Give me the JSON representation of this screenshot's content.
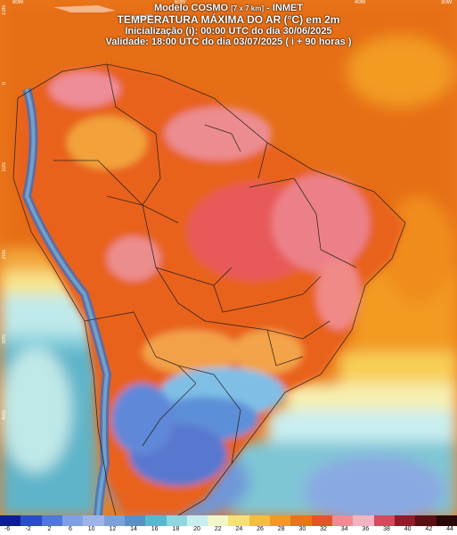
{
  "header": {
    "line1_prefix": "Modelo COSMO",
    "line1_small": "[7 x 7 km]",
    "line1_suffix": "- INMET",
    "line2": "TEMPERATURA MÁXIMA DO AR (°C) em 2m",
    "line3": "Inicialização (i): 00:00 UTC do dia 30/06/2025",
    "line4": "Validade: 18:00 UTC do dia 03/07/2025 ( i + 90 horas )"
  },
  "grid_labels": {
    "longitudes": [
      "80W",
      "60W",
      "40W",
      "30W"
    ],
    "latitudes": [
      "10N",
      "0",
      "10S",
      "20S",
      "30S",
      "40S"
    ]
  },
  "legend": {
    "values": [
      "-6",
      "-2",
      "2",
      "6",
      "10",
      "12",
      "14",
      "16",
      "18",
      "20",
      "22",
      "24",
      "26",
      "28",
      "30",
      "32",
      "34",
      "36",
      "38",
      "40",
      "42",
      "44"
    ],
    "colors": [
      "#0d1f8f",
      "#2a4fc2",
      "#4f78d8",
      "#7f9fe6",
      "#9db3ea",
      "#7ea0d8",
      "#5b8fc4",
      "#5cb6cf",
      "#8fd6df",
      "#c9eef0",
      "#f3f6c9",
      "#f7e07a",
      "#f5bd3c",
      "#f29a20",
      "#ec7416",
      "#e4532a",
      "#ee8c95",
      "#f3b3c2",
      "#d04c5d",
      "#8f1d2a",
      "#5a1014",
      "#2a0808"
    ]
  }
}
